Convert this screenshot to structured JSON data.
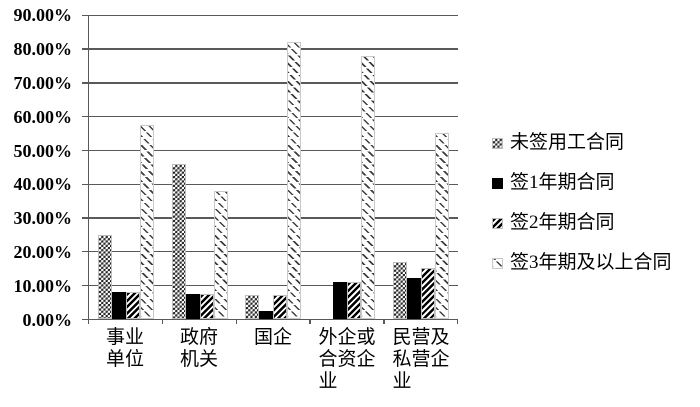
{
  "chart_data": {
    "type": "bar",
    "title": "",
    "xlabel": "",
    "ylabel": "",
    "units": "%",
    "grid": true,
    "legend_position": "right",
    "categories": [
      "事业\n单位",
      "政府\n机关",
      "国企",
      "外企或\n合资企\n业",
      "民营及\n私营企\n业"
    ],
    "series": [
      {
        "name": "未签用工合同",
        "pattern": "checker",
        "values": [
          25,
          46,
          7,
          0,
          17
        ]
      },
      {
        "name": "签1年期合同",
        "pattern": "solid",
        "values": [
          8,
          7.5,
          2.5,
          11,
          12
        ]
      },
      {
        "name": "签2年期合同",
        "pattern": "hatch",
        "values": [
          8,
          7.5,
          7,
          11,
          15
        ]
      },
      {
        "name": "签3年期及以上合同",
        "pattern": "lightdiag",
        "values": [
          57.5,
          38,
          82,
          78,
          55
        ]
      }
    ],
    "y_axis": {
      "min": 0,
      "max": 90,
      "step": 10,
      "tick_labels": [
        "0.00%",
        "10.00%",
        "20.00%",
        "30.00%",
        "40.00%",
        "50.00%",
        "60.00%",
        "70.00%",
        "80.00%",
        "90.00%"
      ]
    },
    "ylim": [
      0,
      90
    ]
  },
  "colors": {
    "background": "#ffffff",
    "axis": "#595959",
    "pattern_ink": "#1a1a1a",
    "solid_bar": "#000000",
    "text": "#000000"
  }
}
